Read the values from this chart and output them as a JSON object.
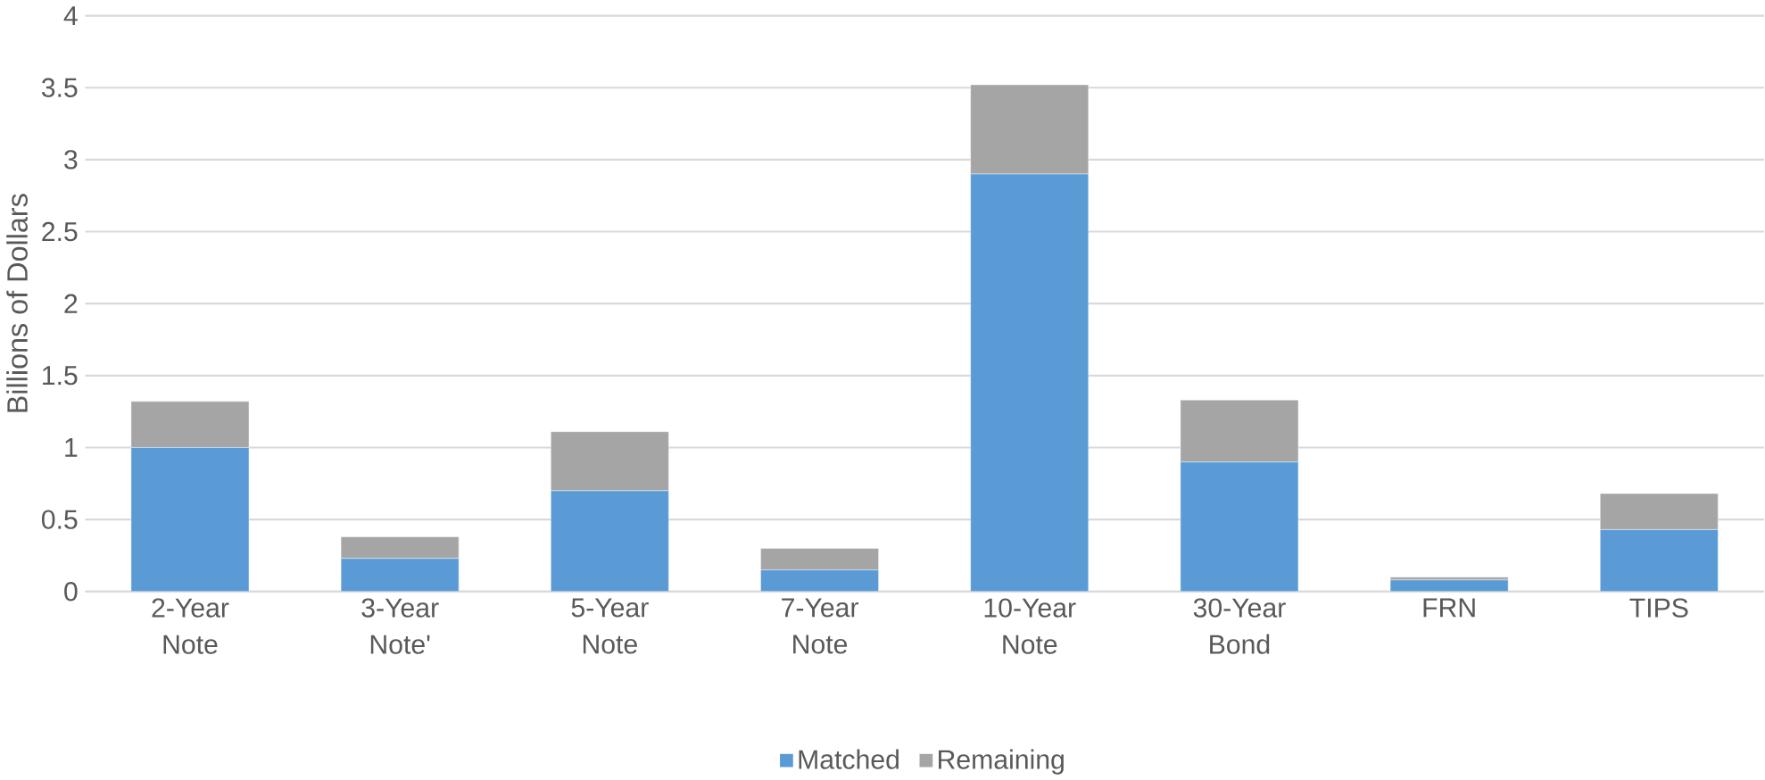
{
  "chart_data": {
    "type": "bar",
    "stacked": true,
    "ylabel": "Billions of Dollars",
    "categories": [
      "2-Year Note",
      "3-Year Note'",
      "5-Year Note",
      "7-Year Note",
      "10-Year Note",
      "30-Year Bond",
      "FRN",
      "TIPS"
    ],
    "series": [
      {
        "name": "Matched",
        "color": "#5b9bd5",
        "values": [
          1.0,
          0.23,
          0.7,
          0.15,
          2.9,
          0.9,
          0.08,
          0.43
        ]
      },
      {
        "name": "Remaining",
        "color": "#a5a5a5",
        "values": [
          0.32,
          0.15,
          0.41,
          0.15,
          0.62,
          0.43,
          0.02,
          0.25
        ]
      }
    ],
    "ylim": [
      0,
      4
    ],
    "yticks": [
      0,
      0.5,
      1,
      1.5,
      2,
      2.5,
      3,
      3.5,
      4
    ],
    "grid": "y",
    "legend": "bottom"
  }
}
